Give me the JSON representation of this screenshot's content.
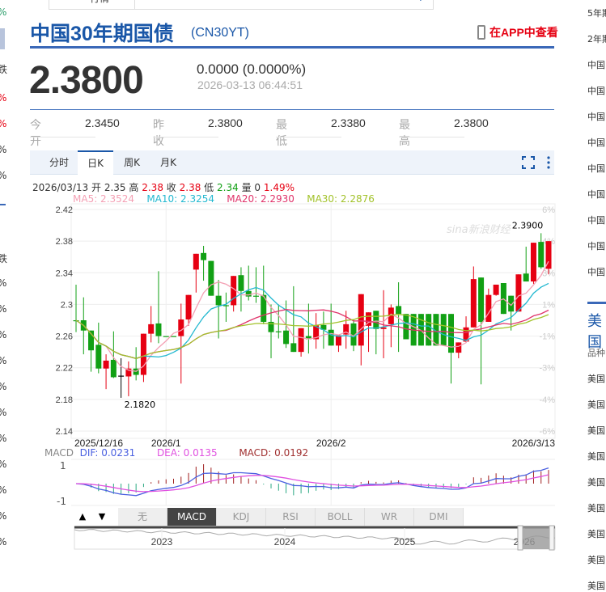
{
  "top": {
    "search_label": "行情"
  },
  "left_strip": [
    {
      "t": "%",
      "c": "#2a9d6a"
    },
    {
      "t": "跌",
      "c": "#333"
    },
    {
      "t": "%",
      "c": "#e60012"
    },
    {
      "t": "%",
      "c": "#e60012"
    },
    {
      "t": "%",
      "c": "#333"
    },
    {
      "t": "%",
      "c": "#333"
    },
    {
      "t": "跌",
      "c": "#333"
    },
    {
      "t": "%",
      "c": "#333"
    },
    {
      "t": "%",
      "c": "#333"
    },
    {
      "t": "%",
      "c": "#333"
    },
    {
      "t": "%",
      "c": "#333"
    },
    {
      "t": "%",
      "c": "#333"
    },
    {
      "t": "%",
      "c": "#333"
    },
    {
      "t": "%",
      "c": "#333"
    },
    {
      "t": "%",
      "c": "#333"
    },
    {
      "t": "%",
      "c": "#333"
    },
    {
      "t": "%",
      "c": "#333"
    },
    {
      "t": "%",
      "c": "#333"
    }
  ],
  "header": {
    "title": "中国30年期国债",
    "code": "(CN30YT)",
    "app_link": "在APP中查看"
  },
  "quote": {
    "price": "2.3800",
    "change": "0.0000 (0.0000%)",
    "time": "2026-03-13 06:44:51"
  },
  "stats": [
    {
      "k": "今开",
      "v": "2.3450"
    },
    {
      "k": "昨收",
      "v": "2.3800"
    },
    {
      "k": "最低",
      "v": "2.3380"
    },
    {
      "k": "最高",
      "v": "2.3800"
    }
  ],
  "tabs": [
    {
      "label": "分时"
    },
    {
      "label": "日K",
      "active": true
    },
    {
      "label": "周K"
    },
    {
      "label": "月K"
    }
  ],
  "info": {
    "date": "2026/03/13",
    "open_l": "开",
    "open": "2.35",
    "high_l": "高",
    "high": "2.38",
    "close_l": "收",
    "close": "2.38",
    "low_l": "低",
    "low": "2.34",
    "vol_l": "量",
    "vol": "0",
    "pct": "1.49%"
  },
  "ma": {
    "ma5": "MA5: 2.3524",
    "ma10": "MA10: 2.3254",
    "ma20": "MA20: 2.2930",
    "ma30": "MA30: 2.2876"
  },
  "colors": {
    "up": "#e60012",
    "down": "#11a014",
    "ma5": "#f4a0b4",
    "ma10": "#22b8d0",
    "ma20": "#e0336a",
    "ma30": "#a2c22a",
    "dif": "#4a60e0",
    "dea": "#e050e0",
    "title": "#1a57a8"
  },
  "macd": {
    "label": "MACD",
    "dif": "DIF: 0.0231",
    "dea": "DEA: 0.0135",
    "macd": "MACD: 0.0192",
    "top_tick": "1",
    "bottom_tick": "-1"
  },
  "indicators": {
    "up": "▲",
    "down": "▼",
    "items": [
      {
        "label": "无"
      },
      {
        "label": "MACD",
        "active": true
      },
      {
        "label": "KDJ"
      },
      {
        "label": "RSI"
      },
      {
        "label": "BOLL"
      },
      {
        "label": "WR"
      },
      {
        "label": "DMI"
      }
    ]
  },
  "navigator": {
    "years": [
      "2023",
      "2024",
      "2025",
      "2026"
    ]
  },
  "right_list": [
    "5年期",
    "2年期",
    "中国",
    "中国",
    "中国",
    "中国",
    "中国",
    "中国",
    "中国",
    "中国",
    "中国",
    "美国",
    "品种",
    "美国",
    "美国",
    "美国",
    "美国",
    "美国",
    "美国",
    "美国",
    "美国",
    "美国"
  ],
  "chart_data": {
    "type": "candlestick",
    "ylim": [
      2.14,
      2.42
    ],
    "y_ticks": [
      "2.42",
      "2.38",
      "2.34",
      "2.3",
      "2.26",
      "2.22",
      "2.18",
      "2.14"
    ],
    "y_ticks_right": [
      "6%",
      "4%",
      "3%",
      "1%",
      "-1%",
      "-3%",
      "-4%",
      "-6%"
    ],
    "x_labels": [
      {
        "i": 0,
        "t": "2025/12/16"
      },
      {
        "i": 12,
        "t": "2026/1"
      },
      {
        "i": 34,
        "t": "2026/2"
      },
      {
        "i": 63,
        "t": "2026/3/13"
      }
    ],
    "min_label": "2.1820",
    "max_label": "2.3900",
    "ohlc": [
      [
        2.28,
        2.325,
        2.265,
        2.28
      ],
      [
        2.28,
        2.309,
        2.237,
        2.267
      ],
      [
        2.267,
        2.267,
        2.215,
        2.242
      ],
      [
        2.249,
        2.277,
        2.213,
        2.219
      ],
      [
        2.219,
        2.237,
        2.193,
        2.229
      ],
      [
        2.23,
        2.266,
        2.207,
        2.208
      ],
      [
        2.21,
        2.232,
        2.182,
        2.21
      ],
      [
        2.209,
        2.228,
        2.184,
        2.219
      ],
      [
        2.219,
        2.246,
        2.204,
        2.211
      ],
      [
        2.211,
        2.263,
        2.202,
        2.263
      ],
      [
        2.263,
        2.298,
        2.252,
        2.275
      ],
      [
        2.276,
        2.342,
        2.251,
        2.26
      ],
      [
        2.26,
        2.26,
        2.26,
        2.26
      ],
      [
        2.26,
        2.26,
        2.26,
        2.26
      ],
      [
        2.26,
        2.301,
        2.2,
        2.281
      ],
      [
        2.281,
        2.312,
        2.273,
        2.312
      ],
      [
        2.344,
        2.364,
        2.315,
        2.364
      ],
      [
        2.365,
        2.374,
        2.33,
        2.356
      ],
      [
        2.355,
        2.355,
        2.311,
        2.311
      ],
      [
        2.311,
        2.331,
        2.257,
        2.299
      ],
      [
        2.299,
        2.315,
        2.278,
        2.298
      ],
      [
        2.299,
        2.336,
        2.291,
        2.336
      ],
      [
        2.337,
        2.347,
        2.291,
        2.317
      ],
      [
        2.317,
        2.349,
        2.305,
        2.31
      ],
      [
        2.311,
        2.347,
        2.302,
        2.311
      ],
      [
        2.312,
        2.349,
        2.275,
        2.278
      ],
      [
        2.278,
        2.3,
        2.232,
        2.265
      ],
      [
        2.266,
        2.3,
        2.257,
        2.266
      ],
      [
        2.267,
        2.305,
        2.245,
        2.25
      ],
      [
        2.251,
        2.323,
        2.24,
        2.24
      ],
      [
        2.24,
        2.27,
        2.234,
        2.27
      ],
      [
        2.26,
        2.301,
        2.238,
        2.256
      ],
      [
        2.256,
        2.289,
        2.244,
        2.274
      ],
      [
        2.274,
        2.291,
        2.244,
        2.268
      ],
      [
        2.268,
        2.301,
        2.248,
        2.248
      ],
      [
        2.248,
        2.261,
        2.24,
        2.261
      ],
      [
        2.262,
        2.292,
        2.244,
        2.275
      ],
      [
        2.276,
        2.281,
        2.241,
        2.248
      ],
      [
        2.248,
        2.313,
        2.223,
        2.313
      ],
      [
        2.273,
        2.29,
        2.24,
        2.29
      ],
      [
        2.292,
        2.292,
        2.237,
        2.269
      ],
      [
        2.269,
        2.318,
        2.232,
        2.271
      ],
      [
        2.275,
        2.3,
        2.246,
        2.296
      ],
      [
        2.298,
        2.328,
        2.24,
        2.288
      ],
      [
        2.288,
        2.288,
        2.256,
        2.256
      ],
      [
        2.288,
        2.288,
        2.248,
        2.248
      ],
      [
        2.288,
        2.288,
        2.248,
        2.248
      ],
      [
        2.288,
        2.288,
        2.248,
        2.248
      ],
      [
        2.288,
        2.288,
        2.248,
        2.248
      ],
      [
        2.288,
        2.288,
        2.248,
        2.248
      ],
      [
        2.288,
        2.288,
        2.2,
        2.239
      ],
      [
        2.239,
        2.252,
        2.232,
        2.252
      ],
      [
        2.253,
        2.285,
        2.252,
        2.271
      ],
      [
        2.271,
        2.348,
        2.271,
        2.332
      ],
      [
        2.334,
        2.334,
        2.199,
        2.278
      ],
      [
        2.278,
        2.32,
        2.278,
        2.312
      ],
      [
        2.312,
        2.325,
        2.311,
        2.325
      ],
      [
        2.327,
        2.327,
        2.288,
        2.288
      ],
      [
        2.311,
        2.311,
        2.267,
        2.291
      ],
      [
        2.291,
        2.338,
        2.291,
        2.338
      ],
      [
        2.339,
        2.373,
        2.329,
        2.329
      ],
      [
        2.329,
        2.378,
        2.326,
        2.378
      ],
      [
        2.379,
        2.39,
        2.345,
        2.347
      ],
      [
        2.345,
        2.38,
        2.338,
        2.38
      ]
    ]
  }
}
